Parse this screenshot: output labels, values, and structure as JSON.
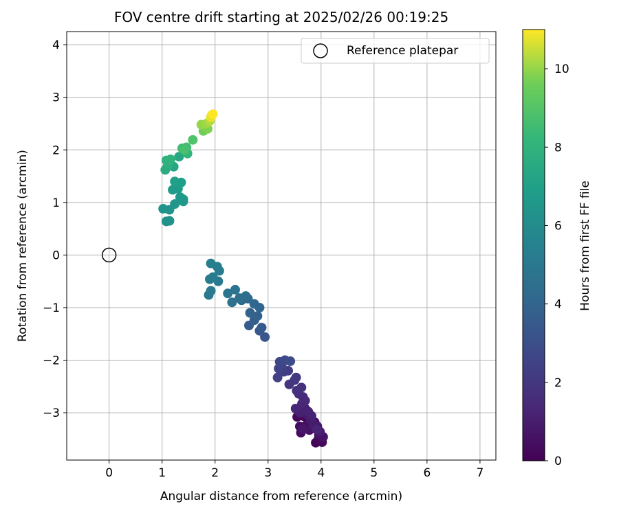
{
  "chart_data": {
    "type": "scatter",
    "title": "FOV centre drift starting at 2025/02/26 00:19:25",
    "xlabel": "Angular distance from reference (arcmin)",
    "ylabel": "Rotation from reference (arcmin)",
    "xlim": [
      -0.8,
      7.3
    ],
    "ylim": [
      -3.9,
      4.25
    ],
    "xticks": [
      0,
      1,
      2,
      3,
      4,
      5,
      6,
      7
    ],
    "yticks": [
      -3,
      -2,
      -1,
      0,
      1,
      2,
      3,
      4
    ],
    "grid": true,
    "colormap": "viridis",
    "colorbar": {
      "label": "Hours from first FF file",
      "range": [
        0,
        11
      ],
      "ticks": [
        0,
        2,
        4,
        6,
        8,
        10
      ]
    },
    "legend": {
      "position": "top-right",
      "entries": [
        "Reference platepar"
      ]
    },
    "reference": {
      "name": "Reference platepar",
      "x": 0,
      "y": 0
    },
    "points": [
      {
        "x": 3.68,
        "y": -3.07,
        "t": 0.1
      },
      {
        "x": 3.9,
        "y": -3.57,
        "t": 0.15
      },
      {
        "x": 3.55,
        "y": -3.08,
        "t": 0.2
      },
      {
        "x": 3.95,
        "y": -3.5,
        "t": 0.25
      },
      {
        "x": 4.02,
        "y": -3.56,
        "t": 0.3
      },
      {
        "x": 3.62,
        "y": -3.38,
        "t": 0.35
      },
      {
        "x": 3.6,
        "y": -3.26,
        "t": 0.4
      },
      {
        "x": 3.72,
        "y": -3.24,
        "t": 0.45
      },
      {
        "x": 3.88,
        "y": -3.18,
        "t": 0.5
      },
      {
        "x": 3.78,
        "y": -3.33,
        "t": 0.55
      },
      {
        "x": 3.96,
        "y": -3.42,
        "t": 0.6
      },
      {
        "x": 4.04,
        "y": -3.46,
        "t": 0.65
      },
      {
        "x": 3.84,
        "y": -3.28,
        "t": 0.7
      },
      {
        "x": 3.66,
        "y": -3.31,
        "t": 0.75
      },
      {
        "x": 3.93,
        "y": -3.26,
        "t": 0.8
      },
      {
        "x": 3.8,
        "y": -3.14,
        "t": 0.85
      },
      {
        "x": 3.74,
        "y": -3.04,
        "t": 0.9
      },
      {
        "x": 3.86,
        "y": -3.22,
        "t": 0.95
      },
      {
        "x": 3.98,
        "y": -3.36,
        "t": 1.0
      },
      {
        "x": 3.7,
        "y": -2.92,
        "t": 1.05
      },
      {
        "x": 3.6,
        "y": -3.0,
        "t": 1.1
      },
      {
        "x": 3.82,
        "y": -3.06,
        "t": 1.15
      },
      {
        "x": 3.76,
        "y": -2.98,
        "t": 1.2
      },
      {
        "x": 3.92,
        "y": -3.32,
        "t": 1.25
      },
      {
        "x": 3.52,
        "y": -2.92,
        "t": 1.3
      },
      {
        "x": 3.64,
        "y": -2.83,
        "t": 1.35
      },
      {
        "x": 3.7,
        "y": -2.77,
        "t": 1.4
      },
      {
        "x": 3.66,
        "y": -2.7,
        "t": 1.5
      },
      {
        "x": 3.58,
        "y": -2.64,
        "t": 1.6
      },
      {
        "x": 3.54,
        "y": -2.58,
        "t": 1.7
      },
      {
        "x": 3.63,
        "y": -2.52,
        "t": 1.8
      },
      {
        "x": 3.4,
        "y": -2.46,
        "t": 1.9
      },
      {
        "x": 3.5,
        "y": -2.38,
        "t": 2.0
      },
      {
        "x": 3.53,
        "y": -2.33,
        "t": 2.1
      },
      {
        "x": 3.38,
        "y": -2.2,
        "t": 2.2
      },
      {
        "x": 3.3,
        "y": -2.22,
        "t": 2.3
      },
      {
        "x": 3.18,
        "y": -2.33,
        "t": 2.4
      },
      {
        "x": 3.2,
        "y": -2.16,
        "t": 2.5
      },
      {
        "x": 3.26,
        "y": -2.08,
        "t": 2.6
      },
      {
        "x": 3.22,
        "y": -2.03,
        "t": 2.7
      },
      {
        "x": 3.32,
        "y": -2.0,
        "t": 2.8
      },
      {
        "x": 3.42,
        "y": -2.02,
        "t": 2.9
      },
      {
        "x": 2.94,
        "y": -1.56,
        "t": 3.3
      },
      {
        "x": 2.84,
        "y": -1.44,
        "t": 3.4
      },
      {
        "x": 2.88,
        "y": -1.38,
        "t": 3.5
      },
      {
        "x": 2.64,
        "y": -1.34,
        "t": 3.6
      },
      {
        "x": 2.74,
        "y": -1.24,
        "t": 3.7
      },
      {
        "x": 2.8,
        "y": -1.16,
        "t": 3.8
      },
      {
        "x": 2.66,
        "y": -1.1,
        "t": 3.9
      },
      {
        "x": 2.84,
        "y": -1.0,
        "t": 4.0
      },
      {
        "x": 2.74,
        "y": -0.93,
        "t": 4.1
      },
      {
        "x": 2.62,
        "y": -0.83,
        "t": 4.2
      },
      {
        "x": 2.5,
        "y": -0.86,
        "t": 4.3
      },
      {
        "x": 2.58,
        "y": -0.78,
        "t": 4.4
      },
      {
        "x": 2.46,
        "y": -0.82,
        "t": 4.5
      },
      {
        "x": 2.32,
        "y": -0.9,
        "t": 4.6
      },
      {
        "x": 2.38,
        "y": -0.66,
        "t": 4.7
      },
      {
        "x": 2.24,
        "y": -0.73,
        "t": 4.8
      },
      {
        "x": 1.88,
        "y": -0.76,
        "t": 4.9
      },
      {
        "x": 1.92,
        "y": -0.68,
        "t": 5.0
      },
      {
        "x": 2.06,
        "y": -0.5,
        "t": 5.1
      },
      {
        "x": 1.9,
        "y": -0.46,
        "t": 5.15
      },
      {
        "x": 1.96,
        "y": -0.42,
        "t": 5.2
      },
      {
        "x": 2.08,
        "y": -0.3,
        "t": 5.25
      },
      {
        "x": 2.04,
        "y": -0.22,
        "t": 5.3
      },
      {
        "x": 1.92,
        "y": -0.16,
        "t": 5.35
      },
      {
        "x": 1.14,
        "y": 0.65,
        "t": 6.3
      },
      {
        "x": 1.08,
        "y": 0.64,
        "t": 6.35
      },
      {
        "x": 1.02,
        "y": 0.88,
        "t": 6.4
      },
      {
        "x": 1.14,
        "y": 0.86,
        "t": 6.45
      },
      {
        "x": 1.24,
        "y": 0.97,
        "t": 6.5
      },
      {
        "x": 1.4,
        "y": 1.02,
        "t": 6.55
      },
      {
        "x": 1.34,
        "y": 1.1,
        "t": 6.6
      },
      {
        "x": 1.4,
        "y": 1.06,
        "t": 6.65
      },
      {
        "x": 1.2,
        "y": 1.24,
        "t": 6.75
      },
      {
        "x": 1.3,
        "y": 1.26,
        "t": 6.8
      },
      {
        "x": 1.36,
        "y": 1.38,
        "t": 6.9
      },
      {
        "x": 1.24,
        "y": 1.4,
        "t": 7.0
      },
      {
        "x": 1.22,
        "y": 1.68,
        "t": 7.3
      },
      {
        "x": 1.32,
        "y": 1.87,
        "t": 7.4
      },
      {
        "x": 1.06,
        "y": 1.62,
        "t": 7.6
      },
      {
        "x": 1.1,
        "y": 1.68,
        "t": 7.7
      },
      {
        "x": 1.12,
        "y": 1.74,
        "t": 7.8
      },
      {
        "x": 1.08,
        "y": 1.8,
        "t": 7.9
      },
      {
        "x": 1.16,
        "y": 1.82,
        "t": 8.0
      },
      {
        "x": 1.48,
        "y": 1.93,
        "t": 8.1
      },
      {
        "x": 1.38,
        "y": 2.03,
        "t": 8.5
      },
      {
        "x": 1.46,
        "y": 2.05,
        "t": 8.6
      },
      {
        "x": 1.42,
        "y": 2.0,
        "t": 8.7
      },
      {
        "x": 1.58,
        "y": 2.19,
        "t": 8.9
      },
      {
        "x": 1.78,
        "y": 2.36,
        "t": 9.6
      },
      {
        "x": 1.86,
        "y": 2.4,
        "t": 9.8
      },
      {
        "x": 1.74,
        "y": 2.48,
        "t": 10.0
      },
      {
        "x": 1.84,
        "y": 2.5,
        "t": 10.1
      },
      {
        "x": 1.9,
        "y": 2.55,
        "t": 10.3
      },
      {
        "x": 1.94,
        "y": 2.66,
        "t": 10.6
      },
      {
        "x": 1.92,
        "y": 2.62,
        "t": 10.8
      },
      {
        "x": 1.96,
        "y": 2.68,
        "t": 11.0
      }
    ]
  }
}
